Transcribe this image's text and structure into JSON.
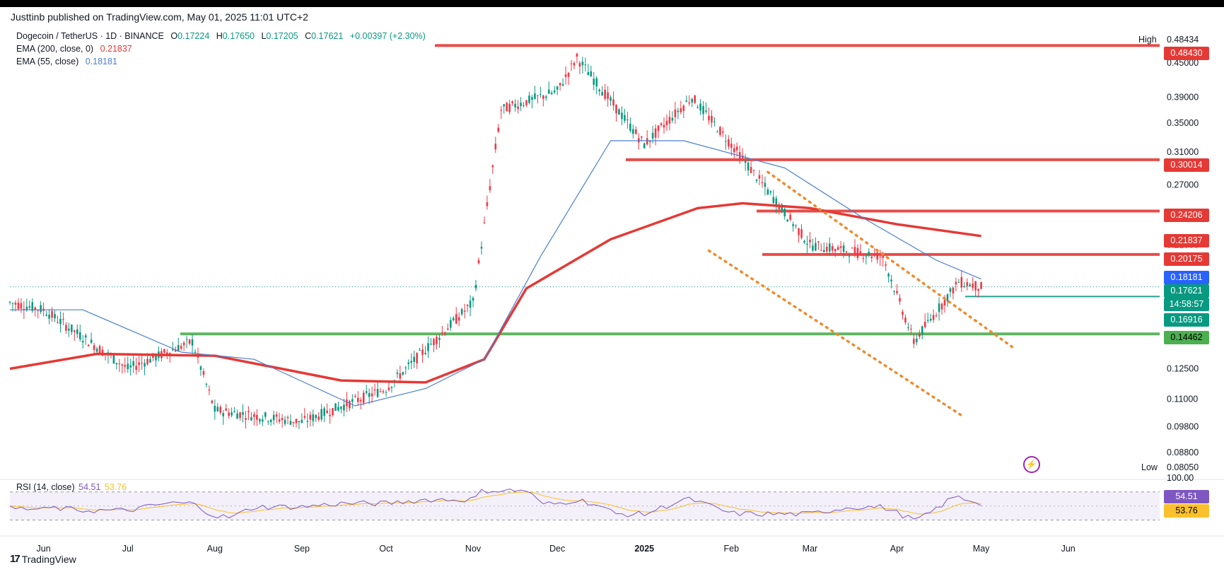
{
  "header": {
    "published": "Justtinb published on TradingView.com, May 01, 2025 11:01 UTC+2"
  },
  "legend": {
    "symbol": "Dogecoin / TetherUS · 1D · BINANCE",
    "ohlc": {
      "o_label": "O",
      "o": "0.17224",
      "h_label": "H",
      "h": "0.17650",
      "l_label": "L",
      "l": "0.17205",
      "c_label": "C",
      "c": "0.17621",
      "change": "+0.00397 (+2.30%)"
    },
    "ema200": {
      "label": "EMA (200, close, 0)",
      "value": "0.21837",
      "color": "#e53935"
    },
    "ema55": {
      "label": "EMA (55, close)",
      "value": "0.18181",
      "color": "#4a7fd4"
    },
    "rsi": {
      "label": "RSI (14, close)",
      "value1": "54.51",
      "value2": "53.76"
    }
  },
  "price_scale": {
    "high_label": "High",
    "high_value": "0.48434",
    "low_label": "Low",
    "low_value": "0.08050",
    "ticks": [
      "0.45000",
      "0.39000",
      "0.35000",
      "0.31000",
      "0.27000",
      "0.21000",
      "0.14000",
      "0.12500",
      "0.11000",
      "0.09800",
      "0.08800"
    ],
    "tags": [
      {
        "value": "0.48430",
        "color": "#e53935"
      },
      {
        "value": "0.30014",
        "color": "#e53935"
      },
      {
        "value": "0.24206",
        "color": "#e53935"
      },
      {
        "value": "0.21837",
        "color": "#e53935"
      },
      {
        "value": "0.20175",
        "color": "#e53935"
      },
      {
        "value": "0.18181",
        "color": "#2962ff"
      },
      {
        "value": "0.17621",
        "color": "#089981"
      },
      {
        "value": "14:58:57",
        "color": "#089981"
      },
      {
        "value": "0.16916",
        "color": "#089981"
      },
      {
        "value": "0.14462",
        "color": "#4caf50"
      }
    ]
  },
  "rsi_scale": {
    "top": "100.00",
    "v1": "54.51",
    "v1_color": "#7e57c2",
    "v2": "53.76",
    "v2_color": "#fbc02d"
  },
  "time_axis": [
    "Jun",
    "Jul",
    "Aug",
    "Sep",
    "Oct",
    "Nov",
    "Dec",
    "2025",
    "Feb",
    "Mar",
    "Apr",
    "May",
    "Jun"
  ],
  "brand": {
    "name": "TradingView",
    "logo": "17"
  },
  "chart_data": {
    "type": "candlestick",
    "scale": "log",
    "ylim": [
      0.0805,
      0.495
    ],
    "x": [
      "2024-05-20",
      "2024-06-01",
      "2024-07-01",
      "2024-07-24",
      "2024-08-01",
      "2024-09-01",
      "2024-10-01",
      "2024-11-01",
      "2024-11-11",
      "2024-12-01",
      "2024-12-08",
      "2025-01-01",
      "2025-01-18",
      "2025-02-01",
      "2025-03-01",
      "2025-03-27",
      "2025-04-01",
      "2025-04-07",
      "2025-04-23",
      "2025-05-01",
      "2025-06-01"
    ],
    "price_path_close": [
      0.165,
      0.16,
      0.125,
      0.14,
      0.105,
      0.1,
      0.115,
      0.165,
      0.37,
      0.4,
      0.46,
      0.32,
      0.39,
      0.32,
      0.21,
      0.2,
      0.17,
      0.14,
      0.18,
      0.176,
      null
    ],
    "series": [
      {
        "name": "EMA (200, close, 0)",
        "color": "#e53935",
        "points": [
          [
            "2024-05-20",
            0.125
          ],
          [
            "2024-06-20",
            0.133
          ],
          [
            "2024-08-01",
            0.132
          ],
          [
            "2024-09-15",
            0.119
          ],
          [
            "2024-10-15",
            0.118
          ],
          [
            "2024-11-05",
            0.13
          ],
          [
            "2024-11-20",
            0.175
          ],
          [
            "2024-12-20",
            0.215
          ],
          [
            "2025-01-20",
            0.245
          ],
          [
            "2025-02-05",
            0.25
          ],
          [
            "2025-03-01",
            0.245
          ],
          [
            "2025-04-01",
            0.229
          ],
          [
            "2025-05-01",
            0.218
          ]
        ]
      },
      {
        "name": "EMA (55, close)",
        "color": "#4a7fd4",
        "points": [
          [
            "2024-05-20",
            0.16
          ],
          [
            "2024-06-15",
            0.16
          ],
          [
            "2024-07-20",
            0.134
          ],
          [
            "2024-08-15",
            0.13
          ],
          [
            "2024-09-20",
            0.107
          ],
          [
            "2024-10-15",
            0.115
          ],
          [
            "2024-11-05",
            0.13
          ],
          [
            "2024-11-25",
            0.2
          ],
          [
            "2024-12-20",
            0.325
          ],
          [
            "2025-01-15",
            0.325
          ],
          [
            "2025-02-20",
            0.29
          ],
          [
            "2025-03-20",
            0.235
          ],
          [
            "2025-04-15",
            0.197
          ],
          [
            "2025-05-01",
            0.182
          ]
        ]
      }
    ],
    "levels": [
      {
        "value": 0.4843,
        "color": "#e53935"
      },
      {
        "value": 0.30014,
        "color": "#e53935"
      },
      {
        "value": 0.24206,
        "color": "#e53935"
      },
      {
        "value": 0.20175,
        "color": "#e53935"
      },
      {
        "value": 0.16916,
        "color": "#089981"
      },
      {
        "value": 0.14462,
        "color": "#4caf50"
      }
    ],
    "channel_lines": [
      {
        "color": "#f08a2c",
        "from": [
          "2025-02-14",
          0.285
        ],
        "to": [
          "2025-05-12",
          0.137
        ]
      },
      {
        "color": "#f08a2c",
        "from": [
          "2025-01-24",
          0.205
        ],
        "to": [
          "2025-04-25",
          0.102
        ]
      }
    ],
    "last_price": 0.17621,
    "rsi": {
      "name": "RSI (14, close)",
      "value": 54.51,
      "ma": 53.76,
      "upper": 70,
      "lower": 30
    }
  }
}
